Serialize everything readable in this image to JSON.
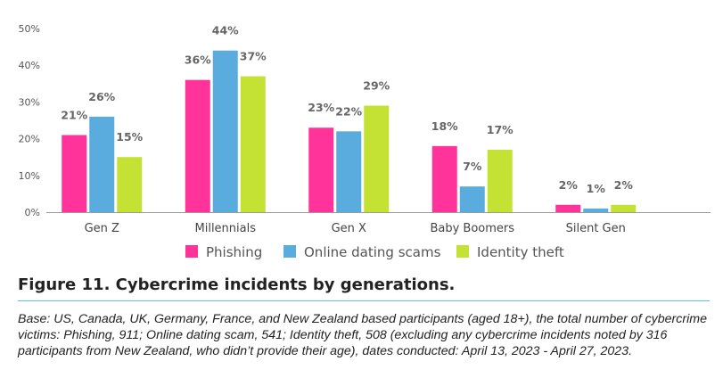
{
  "chart_data": {
    "type": "bar",
    "categories": [
      "Gen Z",
      "Millennials",
      "Gen X",
      "Baby Boomers",
      "Silent Gen"
    ],
    "series": [
      {
        "name": "Phishing",
        "color": "#ff3399",
        "values": [
          21,
          36,
          23,
          18,
          2
        ],
        "labels": [
          "21%",
          "36%",
          "23%",
          "18%",
          "2%"
        ]
      },
      {
        "name": "Online dating scams",
        "color": "#5aabde",
        "values": [
          26,
          44,
          22,
          7,
          1
        ],
        "labels": [
          "26%",
          "44%",
          "22%",
          "7%",
          "1%"
        ]
      },
      {
        "name": "Identity theft",
        "color": "#c3e234",
        "values": [
          15,
          37,
          29,
          17,
          2
        ],
        "labels": [
          "15%",
          "37%",
          "29%",
          "17%",
          "2%"
        ]
      }
    ],
    "yticks": [
      "0%",
      "10%",
      "20%",
      "30%",
      "40%",
      "50%"
    ],
    "ylim": [
      0,
      50
    ],
    "grid": false,
    "legend": "bottom"
  },
  "figure": {
    "title": "Figure 11. Cybercrime incidents by generations.",
    "note": "Base: US, Canada, UK, Germany, France, and New Zealand based participants (aged 18+), the total number of cybercrime victims: Phishing, 911; Online dating scam, 541; Identity theft, 508 (excluding any cybercrime incidents noted by 316 participants from New Zealand, who didn’t provide their age), dates conducted: April 13, 2023 - April 27, 2023."
  }
}
